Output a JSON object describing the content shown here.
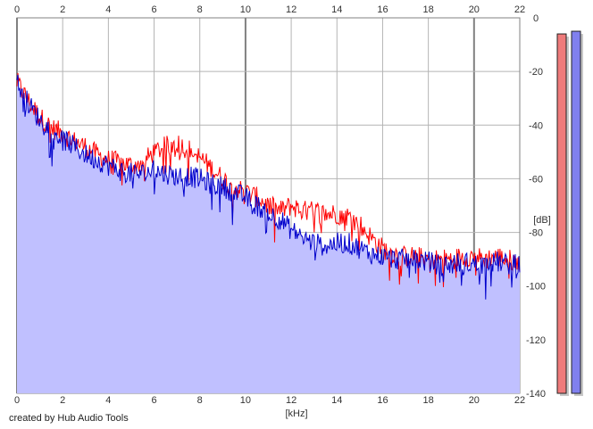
{
  "chart_data": {
    "type": "line",
    "title": "",
    "xlabel": "[kHz]",
    "ylabel": "[dB]",
    "xlim": [
      0,
      22
    ],
    "ylim": [
      -140,
      0
    ],
    "x_ticks": [
      0,
      2,
      4,
      6,
      8,
      10,
      12,
      14,
      16,
      18,
      20,
      22
    ],
    "y_ticks": [
      0,
      -20,
      -40,
      -60,
      -80,
      -100,
      -120,
      -140
    ],
    "grid": true,
    "x_khz": [
      0,
      0.5,
      1,
      1.5,
      2,
      2.5,
      3,
      3.5,
      4,
      4.5,
      5,
      5.5,
      6,
      6.5,
      7,
      7.5,
      8,
      8.5,
      9,
      9.5,
      10,
      10.5,
      11,
      11.5,
      12,
      12.5,
      13,
      13.5,
      14,
      14.5,
      15,
      15.5,
      16,
      16.5,
      17,
      17.5,
      18,
      18.5,
      19,
      19.5,
      20,
      20.5,
      21,
      21.5,
      22
    ],
    "series": [
      {
        "color": "#ff0000",
        "values": [
          -24,
          -31,
          -37,
          -41,
          -43,
          -46,
          -48,
          -51,
          -53,
          -54,
          -55,
          -54,
          -50,
          -48,
          -47,
          -49,
          -52,
          -56,
          -60,
          -63,
          -65,
          -67,
          -70,
          -72,
          -70,
          -72,
          -72,
          -73,
          -73,
          -74,
          -77,
          -82,
          -86,
          -88,
          -89,
          -89,
          -90,
          -90,
          -90,
          -89,
          -89,
          -90,
          -89,
          -90,
          -91
        ]
      },
      {
        "color": "#0000cc",
        "values": [
          -24,
          -32,
          -38,
          -42,
          -45,
          -48,
          -51,
          -53,
          -55,
          -57,
          -58,
          -58,
          -57,
          -58,
          -59,
          -59,
          -60,
          -62,
          -63,
          -65,
          -67,
          -70,
          -73,
          -75,
          -79,
          -82,
          -84,
          -85,
          -84,
          -84,
          -86,
          -88,
          -89,
          -90,
          -90,
          -90,
          -91,
          -92,
          -92,
          -91,
          -92,
          -92,
          -91,
          -92,
          -92
        ]
      }
    ],
    "fill_color": "#c0c0ff",
    "meters": [
      {
        "color": "#ef7b7b",
        "level_db": -6
      },
      {
        "color": "#8080ee",
        "level_db": -5
      }
    ]
  },
  "credit": "created by Hub Audio Tools"
}
